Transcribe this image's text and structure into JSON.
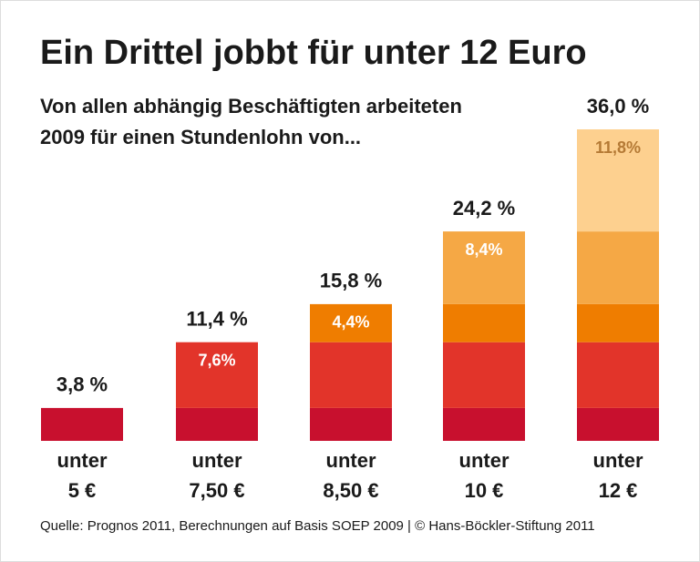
{
  "chart_data": {
    "type": "stacked-bar",
    "title": "Ein Drittel jobbt für unter 12 Euro",
    "subtitle": [
      "Von allen abhängig Beschäftigten arbeiteten",
      "2009 für einen Stundenlohn von..."
    ],
    "categories": [
      [
        "unter",
        "5 €"
      ],
      [
        "unter",
        "7,50 €"
      ],
      [
        "unter",
        "8,50 €"
      ],
      [
        "unter",
        "10 €"
      ],
      [
        "unter",
        "12 €"
      ]
    ],
    "series": [
      {
        "color": "#c8102e",
        "values": [
          3.8,
          3.8,
          3.8,
          3.8,
          3.8
        ]
      },
      {
        "color": "#e2342a",
        "values": [
          null,
          7.6,
          7.6,
          7.6,
          7.6
        ],
        "value_labels": [
          null,
          "7,6%",
          null,
          null,
          null
        ]
      },
      {
        "color": "#ef7d00",
        "values": [
          null,
          null,
          4.4,
          4.4,
          4.4
        ],
        "value_labels": [
          null,
          null,
          "4,4%",
          null,
          null
        ]
      },
      {
        "color": "#f5a845",
        "values": [
          null,
          null,
          null,
          8.4,
          8.4
        ],
        "value_labels": [
          null,
          null,
          null,
          "8,4%",
          null
        ]
      },
      {
        "color": "#fdd08f",
        "label_color": "#b57a35",
        "values": [
          null,
          null,
          null,
          null,
          11.8
        ],
        "value_labels": [
          null,
          null,
          null,
          null,
          "11,8%"
        ]
      }
    ],
    "totals": [
      3.8,
      11.4,
      15.8,
      24.2,
      36.0
    ],
    "total_labels": [
      "3,8 %",
      "11,4 %",
      "15,8 %",
      "24,2 %",
      "36,0 %"
    ],
    "ylim": [
      0,
      36
    ],
    "source": "Quelle: Prognos 2011, Berechnungen auf Basis SOEP 2009 | © Hans-Böckler-Stiftung 2011"
  }
}
